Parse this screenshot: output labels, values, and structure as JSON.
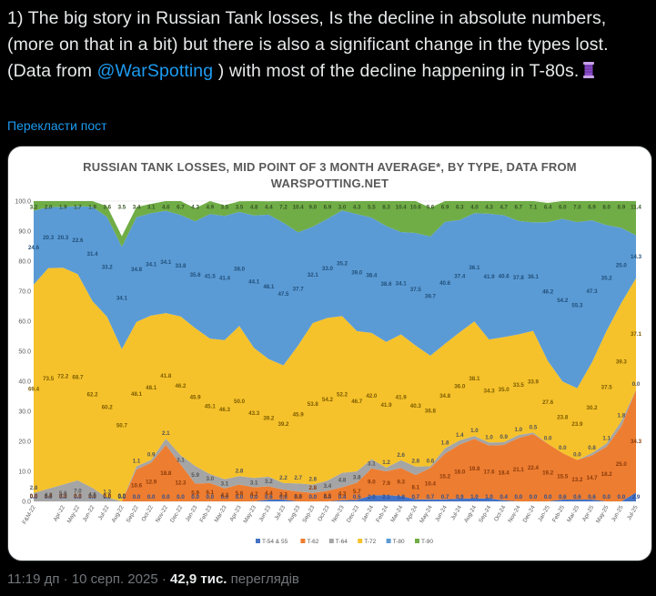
{
  "post": {
    "text_before": "1) The big story in Russian Tank losses, Is the decline in absolute numbers, (more on that in a bit) but there is also a significant change in the types lost. (Data from ",
    "mention": "@WarSpotting",
    "text_after": " ) with most of the decline happening in T-80s.",
    "emoji_icon": "spool-of-thread-icon",
    "translate_label": "Перекласти пост",
    "time": "11:19 дп",
    "date": "10 серп. 2025",
    "views_count": "42,9 тис.",
    "views_label": "переглядів"
  },
  "colors": {
    "T-54 & 55": "#4472c4",
    "T-62": "#ed7d31",
    "T-64": "#a5a5a5",
    "T-72": "#f6c22b",
    "T-80": "#5b9bd5",
    "T-90": "#70ad47"
  },
  "chart_data": {
    "type": "area",
    "stacked": true,
    "title_line1": "RUSSIAN TANK LOSSES, MID POINT OF 3 MONTH AVERAGE*, BY TYPE, DATA FROM",
    "title_line2": "WARSPOTTING.NET",
    "ylim": [
      0,
      100
    ],
    "yticks": [
      "0.0",
      "10.0",
      "20.0",
      "30.0",
      "40.0",
      "50.0",
      "60.0",
      "70.0",
      "80.0",
      "90.0",
      "100.0"
    ],
    "categories": [
      "Feb-22",
      "Mar-22",
      "Apr-22",
      "May-22",
      "Jun-22",
      "Jul-22",
      "Aug-22",
      "Sep-22",
      "Oct-22",
      "Nov-22",
      "Dec-22",
      "Jan-23",
      "Feb-23",
      "Mar-23",
      "Apr-23",
      "May-23",
      "Jun-23",
      "Jul-23",
      "Aug-23",
      "Sep-23",
      "Oct-23",
      "Nov-23",
      "Dec-23",
      "Jan-24",
      "Feb-24",
      "Mar-24",
      "Apr-24",
      "May-24",
      "Jun-24",
      "Jul-24",
      "Aug-24",
      "Sep-24",
      "Oct-24",
      "Nov-24",
      "Dec-24",
      "Jan-25",
      "Feb-25",
      "Mar-25",
      "Apr-25",
      "May-25",
      "Jun-25",
      "Jul-25"
    ],
    "x_tick_labels": [
      "F&M-22",
      "Apr-22",
      "May-22",
      "Jun-22",
      "Jul-22",
      "Aug-22",
      "Sep-22",
      "Oct-22",
      "Nov-22",
      "Dec-22",
      "Jan-23",
      "Feb-23",
      "Mar-23",
      "Apr-23",
      "May-23",
      "Jun-23",
      "Jul-23",
      "Aug-23",
      "Sep-23",
      "Oct-23",
      "Nov-23",
      "Dec-23",
      "Jan-24",
      "Feb-24",
      "Mar-24",
      "Apr-24",
      "May-24",
      "Jun-24",
      "Jul-24",
      "Aug-24",
      "Sep-24",
      "Oct-24",
      "Nov-24",
      "Dec-24",
      "Jan-25",
      "Feb-25",
      "Mar-25",
      "Apr-25",
      "May-25",
      "Jun-25",
      "Jul-25"
    ],
    "series": [
      {
        "name": "T-54 & 55",
        "values": [
          0,
          0,
          0,
          0,
          0,
          0,
          0,
          0,
          0,
          0,
          0,
          0,
          0,
          0,
          0,
          0,
          0.6,
          0.6,
          0,
          0,
          0,
          0.4,
          0.5,
          2.0,
          2.1,
          1.8,
          0.7,
          0.7,
          0.7,
          0.9,
          1.0,
          1.0,
          0.4,
          0,
          0,
          0,
          0.6,
          0.6,
          0.6,
          0,
          0,
          2.9
        ]
      },
      {
        "name": "T-62",
        "values": [
          0,
          0,
          0,
          0,
          0,
          0,
          0,
          10.6,
          12.9,
          18.8,
          12.3,
          5.9,
          6.1,
          4.3,
          5.6,
          4.7,
          4.4,
          3.3,
          3.3,
          2.8,
          3.5,
          4.3,
          5.7,
          9.0,
          7.9,
          9.3,
          8.1,
          10.4,
          15.2,
          18.0,
          19.8,
          17.6,
          18.4,
          21.1,
          22.4,
          19.2,
          15.5,
          13.2,
          14.7,
          18.2,
          25.0,
          34.3
        ]
      },
      {
        "name": "T-64",
        "values": [
          2.8,
          4.2,
          5.6,
          7.0,
          4.5,
          1.3,
          0,
          1.1,
          0.9,
          2.1,
          3.1,
          5.9,
          3.0,
          3.1,
          2.8,
          3.1,
          3.2,
          2.2,
          2.7,
          2.8,
          3.4,
          4.8,
          3.8,
          3.1,
          1.2,
          2.6,
          2.8,
          0.6,
          1.8,
          1.4,
          1.0,
          1.0,
          0.9,
          1.0,
          0.5,
          0,
          0,
          0,
          0.8,
          1.1,
          1.8,
          0
        ]
      },
      {
        "name": "T-72",
        "values": [
          69.4,
          73.5,
          72.2,
          68.7,
          62.2,
          60.2,
          50.7,
          48.1,
          48.1,
          41.8,
          46.2,
          45.9,
          45.1,
          46.3,
          50.0,
          43.3,
          39.2,
          39.2,
          45.9,
          53.8,
          54.2,
          52.2,
          46.7,
          42.0,
          41.9,
          41.9,
          40.3,
          36.8,
          34.8,
          36.0,
          38.1,
          34.3,
          35.0,
          33.5,
          33.9,
          27.6,
          23.8,
          23.9,
          30.2,
          37.5,
          39.3,
          37.1
        ]
      },
      {
        "name": "T-80",
        "values": [
          24.6,
          20.3,
          20.3,
          22.6,
          31.4,
          33.2,
          34.1,
          34.8,
          34.1,
          34.1,
          33.8,
          35.6,
          41.5,
          41.4,
          38.0,
          44.1,
          48.1,
          47.5,
          37.7,
          32.1,
          33.0,
          35.2,
          39.0,
          38.4,
          38.6,
          34.1,
          37.5,
          39.7,
          40.6,
          37.4,
          36.1,
          41.9,
          40.6,
          37.8,
          36.1,
          46.2,
          54.2,
          55.3,
          47.3,
          35.2,
          25.0,
          14.3
        ]
      },
      {
        "name": "T-90",
        "values": [
          3.2,
          2.0,
          1.9,
          1.7,
          1.9,
          3.6,
          3.5,
          3.4,
          3.1,
          4.6,
          6.7,
          4.3,
          4.9,
          3.5,
          3.5,
          4.8,
          4.4,
          7.2,
          10.4,
          9.0,
          6.9,
          3.0,
          4.3,
          5.5,
          8.3,
          10.4,
          10.6,
          9.6,
          6.9,
          6.3,
          4.0,
          4.3,
          4.7,
          6.7,
          7.1,
          6.4,
          6.0,
          7.0,
          6.9,
          8.0,
          8.9,
          11.4
        ]
      }
    ]
  }
}
